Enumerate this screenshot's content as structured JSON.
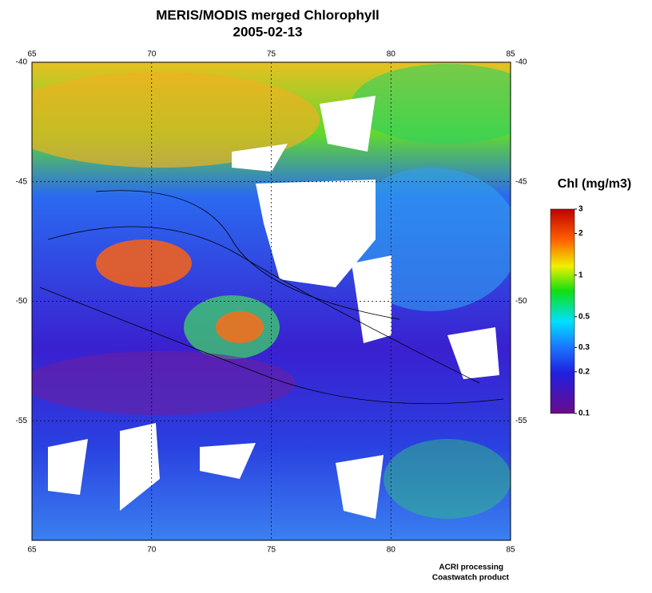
{
  "title": "MERIS/MODIS merged Chlorophyll",
  "subtitle": "2005-02-13",
  "map": {
    "xlim": [
      65,
      85
    ],
    "ylim": [
      -60,
      -40
    ],
    "xticks": [
      65,
      70,
      75,
      80,
      85
    ],
    "yticks": [
      -40,
      -45,
      -50,
      -55
    ],
    "grid": true
  },
  "colorbar": {
    "label": "Chl (mg/m3)",
    "lim": [
      0.1,
      3
    ],
    "log": true,
    "ticks": [
      3,
      2,
      1,
      0.5,
      0.3,
      0.2,
      0.1
    ]
  },
  "credits": [
    "ACRI processing",
    "Coastwatch product"
  ]
}
